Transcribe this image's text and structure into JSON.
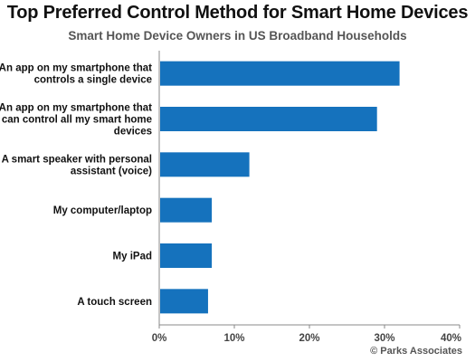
{
  "credit": "© Parks Associates",
  "colors": {
    "bar": "#1572BD",
    "axis": "#888888",
    "text": "#111111"
  },
  "chart_data": {
    "type": "bar",
    "orientation": "horizontal",
    "title": "Top Preferred Control Method for Smart Home Devices",
    "subtitle": "Smart Home Device Owners in US Broadband Households",
    "categories": [
      "An app on my smartphone that controls a single device",
      "An app on my smartphone that can control all my smart home devices",
      "A smart speaker with personal assistant (voice)",
      "My computer/laptop",
      "My iPad",
      "A touch screen"
    ],
    "category_lines": [
      [
        "An app on my smartphone that",
        "controls a single device"
      ],
      [
        "An app on my smartphone that",
        "can control all my smart home",
        "devices"
      ],
      [
        "A smart speaker with personal",
        "assistant (voice)"
      ],
      [
        "My computer/laptop"
      ],
      [
        "My iPad"
      ],
      [
        "A touch screen"
      ]
    ],
    "values": [
      32,
      29,
      12,
      7,
      7,
      6.5
    ],
    "xlim": [
      0,
      40
    ],
    "xticks": [
      0,
      10,
      20,
      30,
      40
    ],
    "xtick_labels": [
      "0%",
      "10%",
      "20%",
      "30%",
      "40%"
    ],
    "grid": false,
    "legend": "none"
  }
}
